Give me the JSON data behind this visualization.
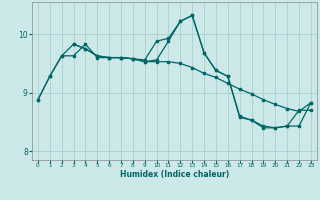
{
  "xlabel": "Humidex (Indice chaleur)",
  "background_color": "#cce8e8",
  "grid_color": "#aad0d0",
  "line_color": "#006666",
  "xlim": [
    -0.5,
    23.5
  ],
  "ylim": [
    7.85,
    10.55
  ],
  "yticks": [
    8,
    9,
    10
  ],
  "xticks": [
    0,
    1,
    2,
    3,
    4,
    5,
    6,
    7,
    8,
    9,
    10,
    11,
    12,
    13,
    14,
    15,
    16,
    17,
    18,
    19,
    20,
    21,
    22,
    23
  ],
  "series1_x": [
    0,
    1,
    2,
    3,
    4,
    5,
    6,
    7,
    8,
    9,
    10,
    11,
    12,
    13,
    14,
    15,
    16,
    17,
    18,
    19,
    20,
    21,
    22,
    23
  ],
  "series1_y": [
    8.88,
    9.28,
    9.63,
    9.83,
    9.75,
    9.63,
    9.6,
    9.6,
    9.58,
    9.56,
    9.88,
    9.93,
    10.22,
    10.32,
    9.68,
    9.38,
    9.28,
    8.58,
    8.53,
    8.4,
    8.4,
    8.43,
    8.7,
    8.7
  ],
  "series2_x": [
    0,
    1,
    2,
    3,
    4,
    5,
    6,
    7,
    8,
    9,
    10,
    11,
    12,
    13,
    14,
    15,
    16,
    17,
    18,
    19,
    20,
    21,
    22,
    23
  ],
  "series2_y": [
    8.88,
    9.28,
    9.63,
    9.63,
    9.83,
    9.6,
    9.6,
    9.6,
    9.58,
    9.53,
    9.53,
    9.53,
    9.5,
    9.43,
    9.33,
    9.26,
    9.16,
    9.06,
    8.98,
    8.88,
    8.8,
    8.73,
    8.68,
    8.83
  ],
  "series3_x": [
    3,
    4,
    5,
    6,
    7,
    8,
    9,
    10,
    11,
    12,
    13,
    14,
    15,
    16,
    17,
    18,
    19,
    20,
    21,
    22,
    23
  ],
  "series3_y": [
    9.83,
    9.75,
    9.63,
    9.6,
    9.6,
    9.58,
    9.53,
    9.56,
    9.88,
    10.22,
    10.32,
    9.68,
    9.38,
    9.28,
    8.6,
    8.53,
    8.43,
    8.4,
    8.43,
    8.43,
    8.83
  ]
}
